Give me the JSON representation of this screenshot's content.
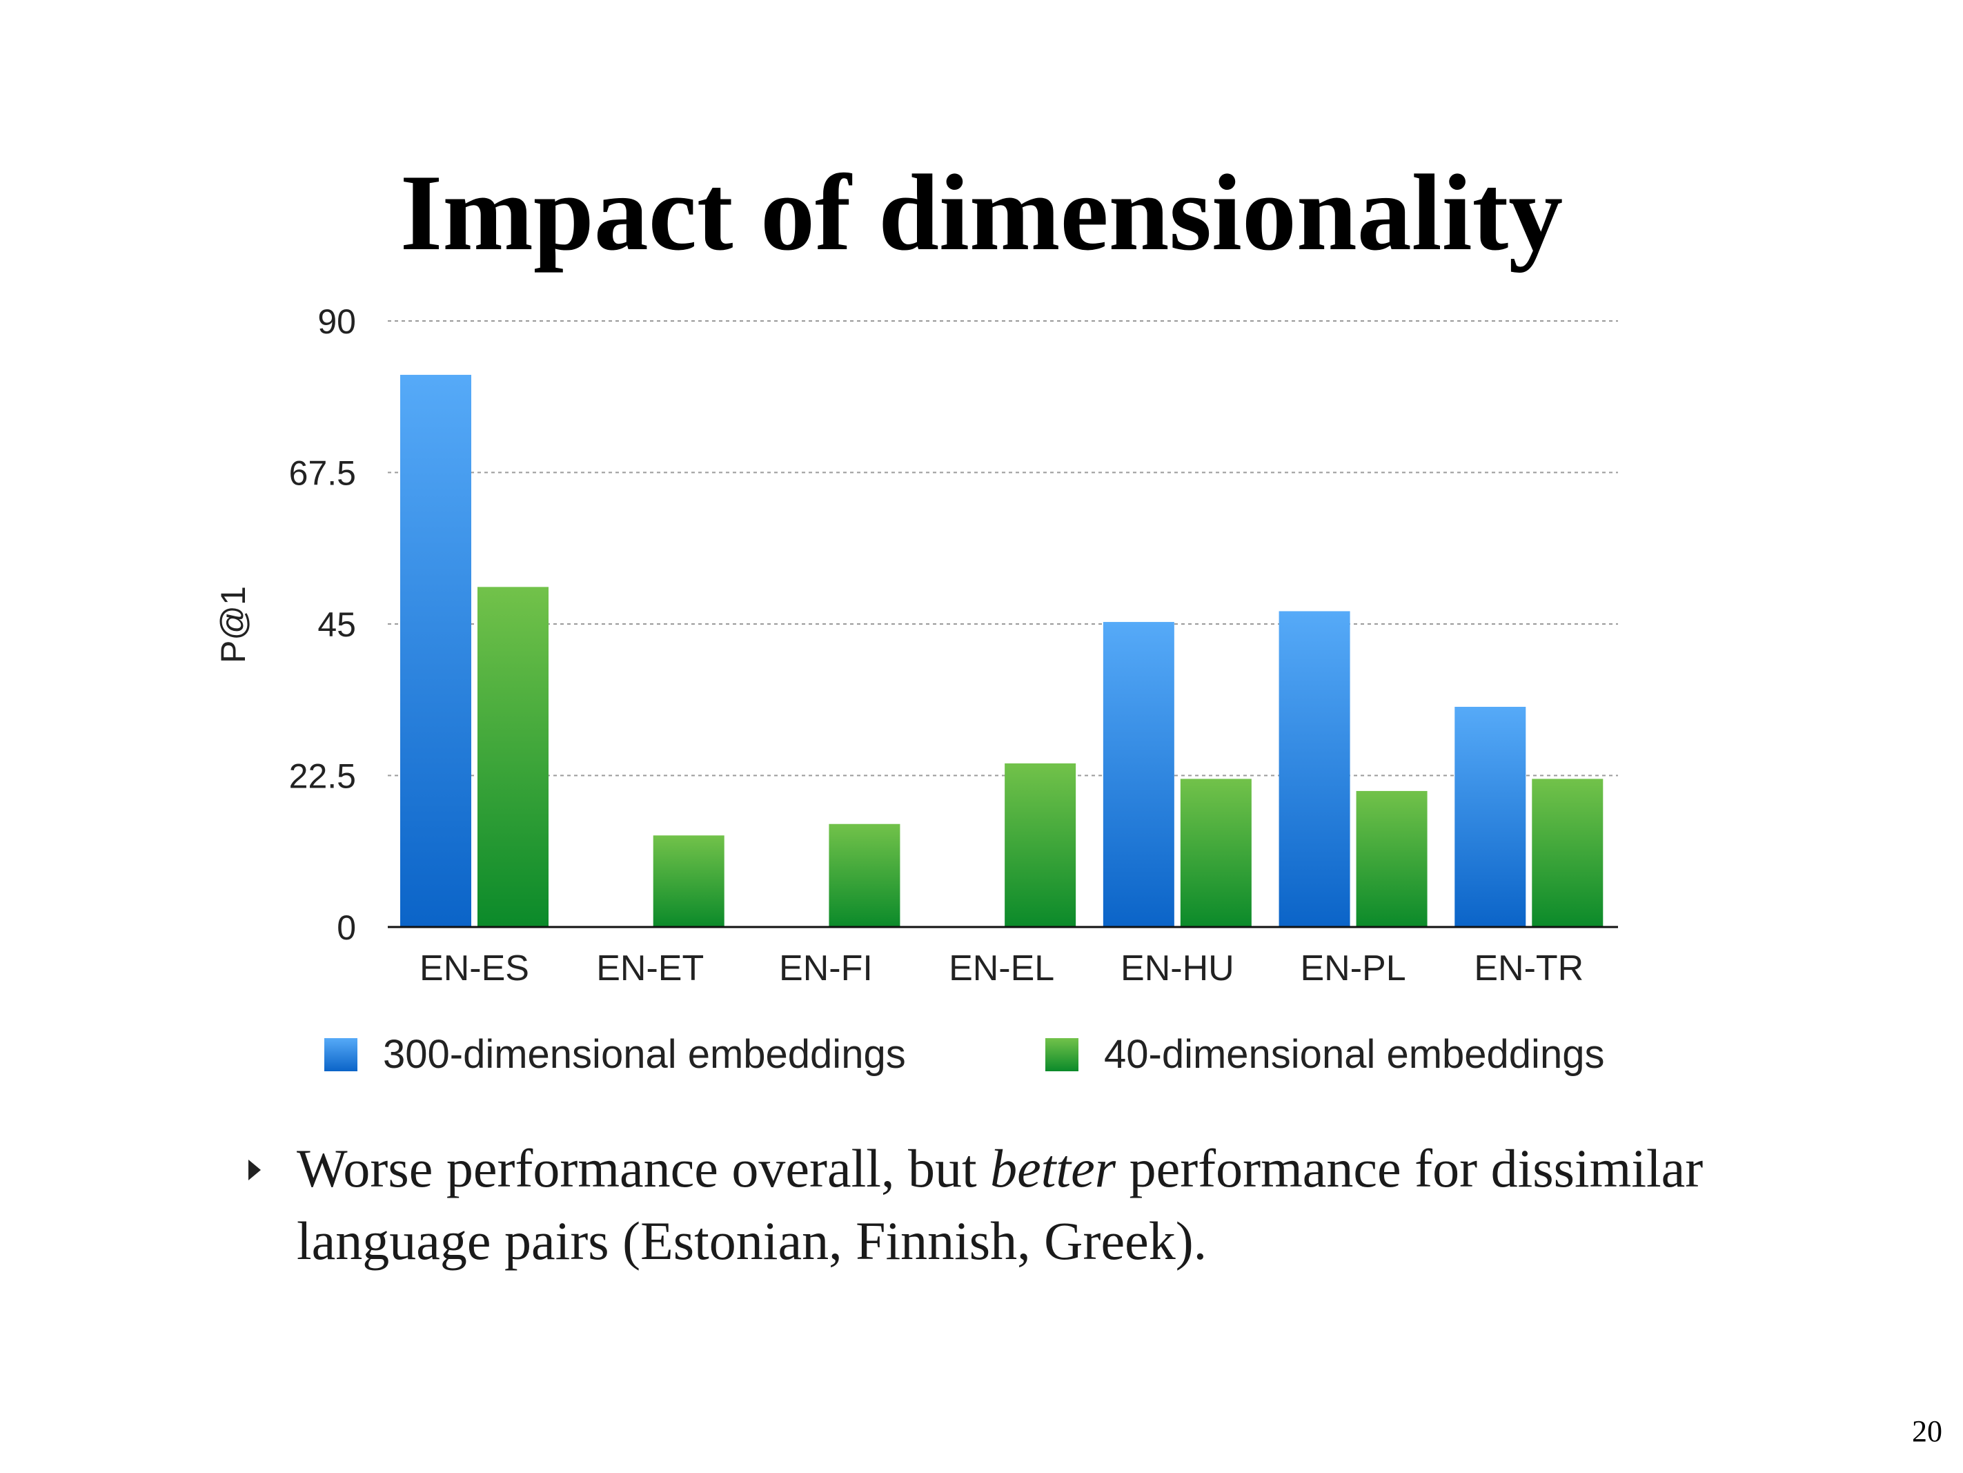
{
  "slide": {
    "title": "Impact of dimensionality",
    "bullet": {
      "before": "Worse performance overall, but ",
      "emphasis": "better",
      "after": " performance for dissimilar language pairs (Estonian, Finnish, Greek)."
    },
    "page_number": "20"
  },
  "chart_data": {
    "type": "bar",
    "title": "",
    "xlabel": "",
    "ylabel": "P@1",
    "ylim": [
      0,
      90
    ],
    "yticks": [
      0,
      22.5,
      45,
      67.5,
      90
    ],
    "ytick_labels": [
      "0",
      "22.5",
      "45",
      "67.5",
      "90"
    ],
    "grid": true,
    "legend_position": "bottom",
    "categories": [
      "EN-ES",
      "EN-ET",
      "EN-FI",
      "EN-EL",
      "EN-HU",
      "EN-PL",
      "EN-TR"
    ],
    "series": [
      {
        "name": "300-dimensional embeddings",
        "color": "#2a86e6",
        "values": [
          82,
          0,
          0,
          0,
          45.3,
          46.9,
          32.7
        ]
      },
      {
        "name": "40-dimensional embeddings",
        "color": "#3aa83a",
        "values": [
          50.5,
          13.6,
          15.3,
          24.3,
          22,
          20.2,
          22
        ]
      }
    ]
  }
}
